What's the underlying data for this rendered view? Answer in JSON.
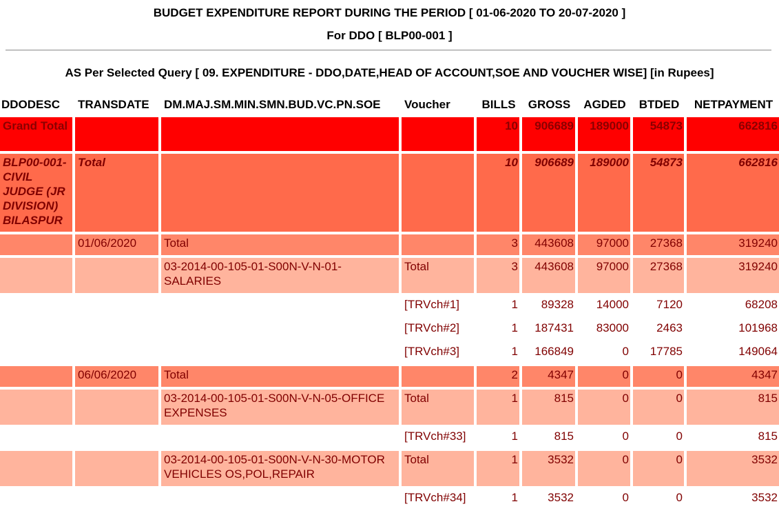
{
  "report": {
    "title": "BUDGET EXPENDITURE REPORT DURING THE PERIOD [ 01-06-2020 TO 20-07-2020 ]",
    "subtitle": "For DDO [ BLP00-001 ]",
    "query": "AS Per Selected Query [ 09. EXPENDITURE - DDO,DATE,HEAD OF ACCOUNT,SOE AND VOUCHER WISE] [in Rupees]"
  },
  "columns": [
    "DDODESC",
    "TRANSDATE",
    "DM.MAJ.SM.MIN.SMN.BUD.VC.PN.SOE",
    "Voucher",
    "BILLS",
    "GROSS",
    "AGDED",
    "BTDED",
    "NETPAYMENT"
  ],
  "colors": {
    "grand_total": "#ff0000",
    "ddo_total": "#ff6a4b",
    "date_total": "#ff8669",
    "head_total": "#ffb49d",
    "voucher_row": "#ffffff",
    "text": "#800000"
  },
  "rows": [
    {
      "type": "grand",
      "ddodesc": "Grand Total",
      "transdate": "",
      "head": "",
      "voucher": "",
      "bills": "10",
      "gross": "906689",
      "agded": "189000",
      "btded": "54873",
      "net": "662816"
    },
    {
      "type": "ddo",
      "ddodesc": "BLP00-001-CIVIL JUDGE (JR DIVISION) BILASPUR",
      "transdate": "Total",
      "head": "",
      "voucher": "",
      "bills": "10",
      "gross": "906689",
      "agded": "189000",
      "btded": "54873",
      "net": "662816"
    },
    {
      "type": "date",
      "ddodesc": "",
      "transdate": "01/06/2020",
      "head": "Total",
      "voucher": "",
      "bills": "3",
      "gross": "443608",
      "agded": "97000",
      "btded": "27368",
      "net": "319240"
    },
    {
      "type": "head",
      "ddodesc": "",
      "transdate": "",
      "head": "03-2014-00-105-01-S00N-V-N-01-SALARIES",
      "voucher": "Total",
      "bills": "3",
      "gross": "443608",
      "agded": "97000",
      "btded": "27368",
      "net": "319240"
    },
    {
      "type": "vch",
      "ddodesc": "",
      "transdate": "",
      "head": "",
      "voucher": "[TRVch#1]",
      "bills": "1",
      "gross": "89328",
      "agded": "14000",
      "btded": "7120",
      "net": "68208"
    },
    {
      "type": "vch",
      "ddodesc": "",
      "transdate": "",
      "head": "",
      "voucher": "[TRVch#2]",
      "bills": "1",
      "gross": "187431",
      "agded": "83000",
      "btded": "2463",
      "net": "101968"
    },
    {
      "type": "vch",
      "ddodesc": "",
      "transdate": "",
      "head": "",
      "voucher": "[TRVch#3]",
      "bills": "1",
      "gross": "166849",
      "agded": "0",
      "btded": "17785",
      "net": "149064"
    },
    {
      "type": "date",
      "ddodesc": "",
      "transdate": "06/06/2020",
      "head": "Total",
      "voucher": "",
      "bills": "2",
      "gross": "4347",
      "agded": "0",
      "btded": "0",
      "net": "4347"
    },
    {
      "type": "head",
      "ddodesc": "",
      "transdate": "",
      "head": "03-2014-00-105-01-S00N-V-N-05-OFFICE EXPENSES",
      "voucher": "Total",
      "bills": "1",
      "gross": "815",
      "agded": "0",
      "btded": "0",
      "net": "815"
    },
    {
      "type": "vch",
      "ddodesc": "",
      "transdate": "",
      "head": "",
      "voucher": "[TRVch#33]",
      "bills": "1",
      "gross": "815",
      "agded": "0",
      "btded": "0",
      "net": "815"
    },
    {
      "type": "head",
      "ddodesc": "",
      "transdate": "",
      "head": "03-2014-00-105-01-S00N-V-N-30-MOTOR VEHICLES OS,POL,REPAIR",
      "voucher": "Total",
      "bills": "1",
      "gross": "3532",
      "agded": "0",
      "btded": "0",
      "net": "3532"
    },
    {
      "type": "vch",
      "ddodesc": "",
      "transdate": "",
      "head": "",
      "voucher": "[TRVch#34]",
      "bills": "1",
      "gross": "3532",
      "agded": "0",
      "btded": "0",
      "net": "3532"
    }
  ]
}
